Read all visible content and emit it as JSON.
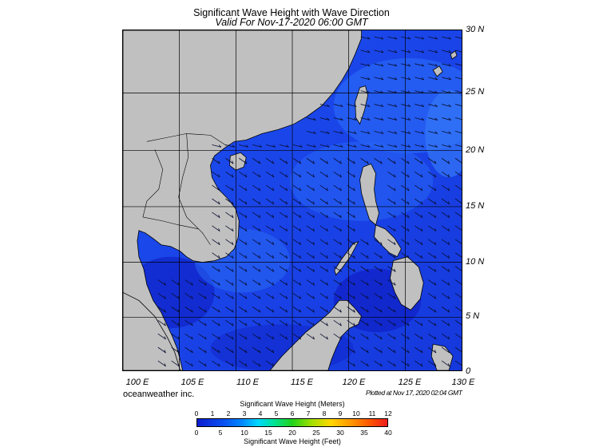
{
  "title": "Significant Wave Height with Wave Direction",
  "subtitle": "Valid For Nov-17-2020 06:00 GMT",
  "credit": "oceanweather inc.",
  "plotted": "Plotted at Nov 17, 2020 02:04 GMT",
  "lat_labels": [
    "30 N",
    "25 N",
    "20 N",
    "15 N",
    "10 N",
    "5 N",
    "0"
  ],
  "lon_labels": [
    "100 E",
    "105 E",
    "110 E",
    "115 E",
    "120 E",
    "125 E",
    "130 E"
  ],
  "legend": {
    "meters_title": "Significant Wave Height (Meters)",
    "feet_title": "Significant Wave Height (Feet)",
    "meters_ticks": [
      "0",
      "1",
      "2",
      "3",
      "4",
      "5",
      "6",
      "7",
      "8",
      "9",
      "10",
      "11",
      "12"
    ],
    "feet_ticks": [
      "0",
      "5",
      "10",
      "15",
      "20",
      "25",
      "30",
      "35",
      "40"
    ],
    "colors": [
      "#0d1dcf",
      "#0a50f0",
      "#008cff",
      "#00d8ff",
      "#00e39a",
      "#22d21a",
      "#9fe000",
      "#ffd800",
      "#ff9d00",
      "#ff5a00",
      "#ee1c1c"
    ]
  },
  "map_colors": {
    "land": "#c0c0c0",
    "sea_high": "#1f58f2",
    "sea_low": "#1432d8",
    "arrow": "#0a0f30"
  }
}
